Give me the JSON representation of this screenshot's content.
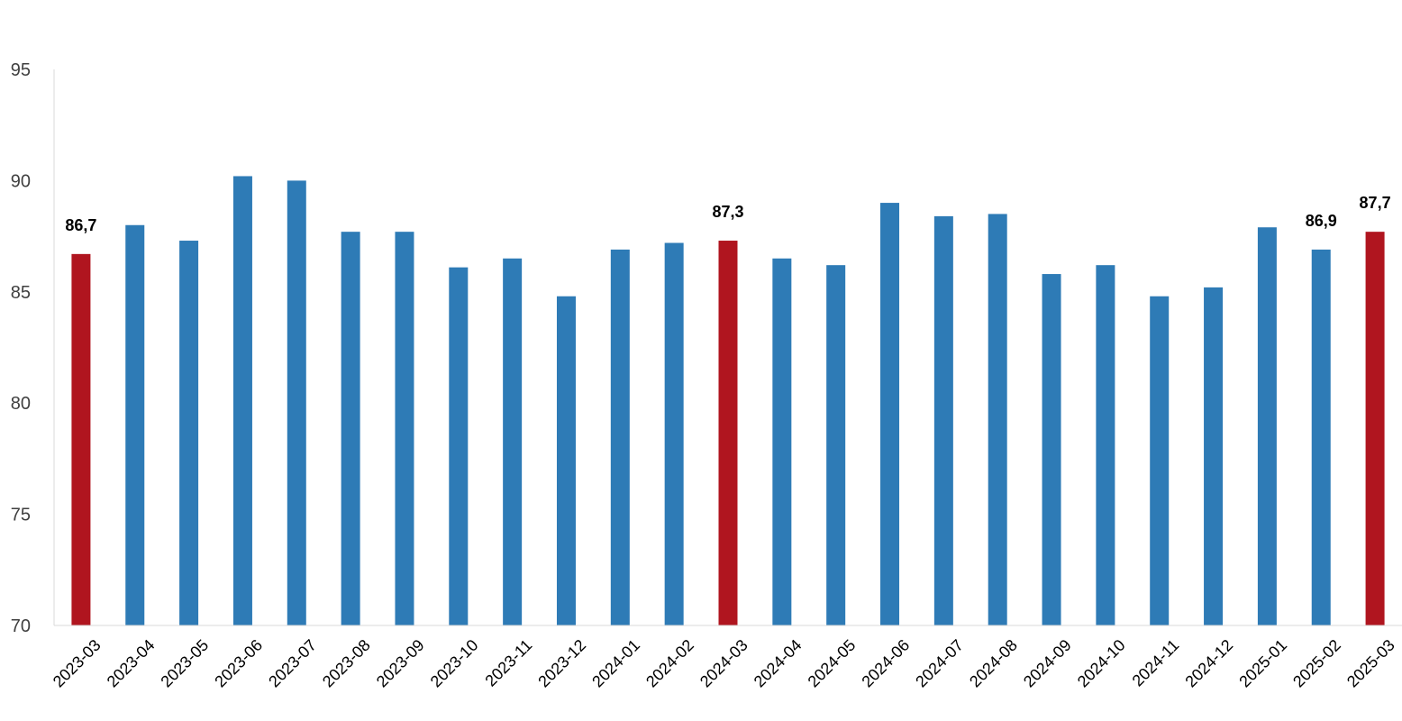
{
  "chart_data": {
    "type": "bar",
    "title": "",
    "xlabel": "",
    "ylabel": "",
    "ylim": [
      70,
      95
    ],
    "yticks": [
      70,
      75,
      80,
      85,
      90,
      95
    ],
    "ytick_labels": [
      "70",
      "75",
      "80",
      "85",
      "90",
      "95"
    ],
    "grid": false,
    "legend": "none",
    "categories": [
      "2023-03",
      "2023-04",
      "2023-05",
      "2023-06",
      "2023-07",
      "2023-08",
      "2023-09",
      "2023-10",
      "2023-11",
      "2023-12",
      "2024-01",
      "2024-02",
      "2024-03",
      "2024-04",
      "2024-05",
      "2024-06",
      "2024-07",
      "2024-08",
      "2024-09",
      "2024-10",
      "2024-11",
      "2024-12",
      "2025-01",
      "2025-02",
      "2025-03"
    ],
    "values": [
      86.7,
      88.0,
      87.3,
      90.2,
      90.0,
      87.7,
      87.7,
      86.1,
      86.5,
      84.8,
      86.9,
      87.2,
      87.3,
      86.5,
      86.2,
      89.0,
      88.4,
      88.5,
      85.8,
      86.2,
      84.8,
      85.2,
      87.9,
      86.9,
      87.7
    ],
    "highlighted": [
      "2023-03",
      "2024-03",
      "2025-03"
    ],
    "data_labels": {
      "2023-03": "86,7",
      "2024-03": "87,3",
      "2025-02": "86,9",
      "2025-03": "87,7"
    },
    "colors": {
      "bar": "#2e7bb6",
      "highlight": "#b0151f",
      "axis": "#d9d9d9"
    }
  }
}
